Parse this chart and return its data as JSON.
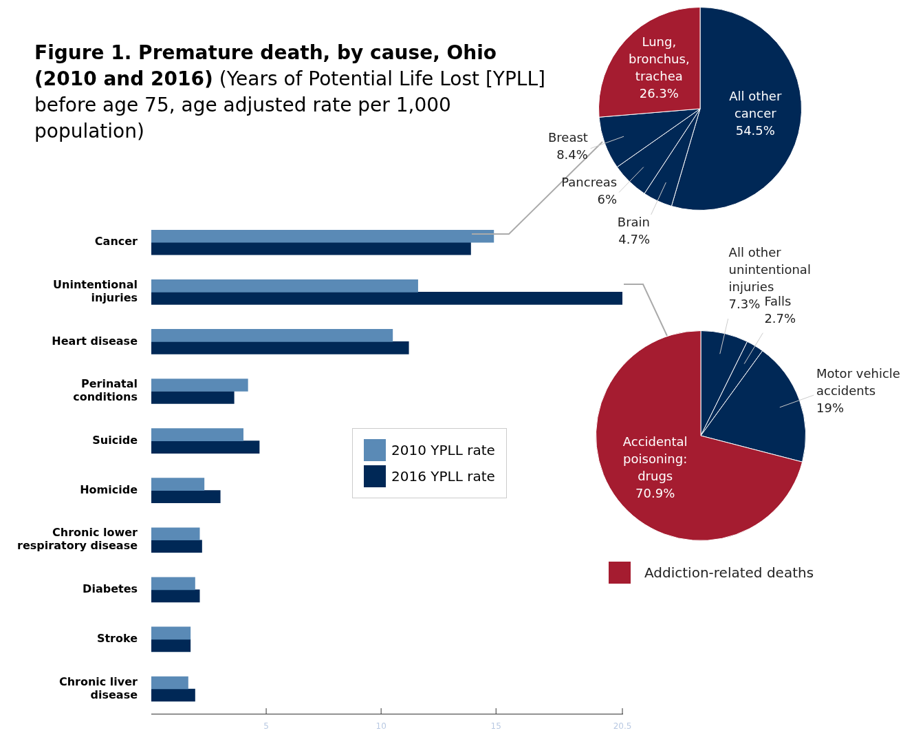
{
  "chart_data": [
    {
      "type": "bar",
      "orientation": "horizontal",
      "title": "Figure 1. Premature death, by cause, Ohio (2010 and 2016)",
      "subtitle": "(Years of Potential Life Lost [YPLL] before age 75, age adjusted rate per 1,000 population)",
      "categories": [
        "Cancer",
        "Unintentional injuries",
        "Heart disease",
        "Perinatal conditions",
        "Suicide",
        "Homicide",
        "Chronic lower respiratory disease",
        "Diabetes",
        "Stroke",
        "Chronic liver disease"
      ],
      "series": [
        {
          "name": "2010 YPLL rate",
          "color": "#5a8ab6",
          "values": [
            14.9,
            11.6,
            10.5,
            4.2,
            4.0,
            2.3,
            2.1,
            1.9,
            1.7,
            1.6
          ]
        },
        {
          "name": "2016 YPLL rate",
          "color": "#002856",
          "values": [
            13.9,
            20.5,
            11.2,
            3.6,
            4.7,
            3.0,
            2.2,
            2.1,
            1.7,
            1.9
          ]
        }
      ],
      "xlim": [
        0,
        20.5
      ],
      "xticks": [
        5,
        10,
        15,
        20.5
      ],
      "legend": "center"
    },
    {
      "type": "pie",
      "categories": [
        "All other cancer",
        "Brain",
        "Pancreas",
        "Breast",
        "Lung, bronchus, trachea"
      ],
      "values": [
        54.5,
        4.7,
        6,
        8.4,
        26.3
      ],
      "colors": [
        "#002856",
        "#002856",
        "#002856",
        "#002856",
        "#a51c30"
      ],
      "value_labels": [
        "54.5%",
        "4.7%",
        "6%",
        "8.4%",
        "26.3%"
      ]
    },
    {
      "type": "pie",
      "categories": [
        "All other unintentional injuries",
        "Falls",
        "Motor vehicle accidents",
        "Accidental poisoning: drugs"
      ],
      "values": [
        7.3,
        2.7,
        19,
        70.9
      ],
      "colors": [
        "#002856",
        "#002856",
        "#002856",
        "#a51c30"
      ],
      "value_labels": [
        "7.3%",
        "2.7%",
        "19%",
        "70.9%"
      ],
      "annotations": [
        "Addiction-related deaths"
      ]
    }
  ]
}
